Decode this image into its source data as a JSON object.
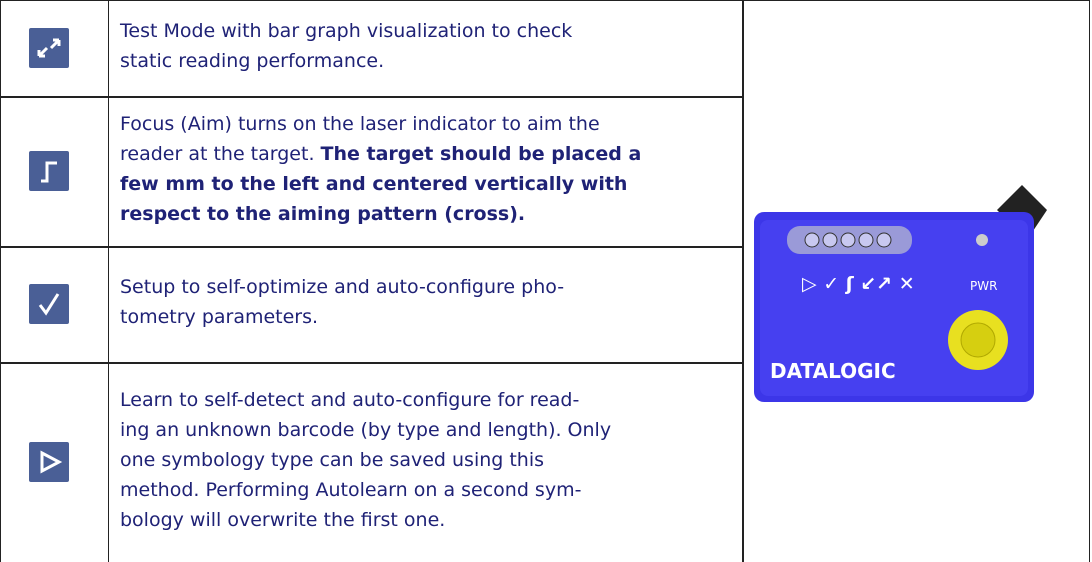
{
  "table": {
    "rows": [
      {
        "lines": [
          [
            {
              "text": "Test Mode with bar graph visualization to check",
              "bold": false
            }
          ],
          [
            {
              "text": "static reading performance.",
              "bold": false
            }
          ]
        ]
      },
      {
        "lines": [
          [
            {
              "text": "Focus (Aim) turns on the laser indicator to aim the",
              "bold": false
            }
          ],
          [
            {
              "text": "reader at the target. ",
              "bold": false
            },
            {
              "text": "The target should be placed a",
              "bold": true
            }
          ],
          [
            {
              "text": "few mm to the left and centered vertically with",
              "bold": true
            }
          ],
          [
            {
              "text": "respect to the aiming pattern (cross).",
              "bold": true
            }
          ]
        ]
      },
      {
        "lines": [
          [
            {
              "text": "Setup to self-optimize and auto-configure pho-",
              "bold": false
            }
          ],
          [
            {
              "text": "tometry parameters.",
              "bold": false
            }
          ]
        ]
      },
      {
        "lines": [
          [
            {
              "text": "Learn to self-detect and auto-configure for read-",
              "bold": false
            }
          ],
          [
            {
              "text": "ing an unknown barcode (by type and length). Only",
              "bold": false
            }
          ],
          [
            {
              "text": "one symbology type can be saved using this",
              "bold": false
            }
          ],
          [
            {
              "text": "method. Performing Autolearn on a second sym-",
              "bold": false
            }
          ],
          [
            {
              "text": "bology will overwrite the first one.",
              "bold": false
            }
          ]
        ]
      }
    ]
  },
  "device": {
    "power_label": "PWR",
    "brand": "DATALOGIC"
  }
}
